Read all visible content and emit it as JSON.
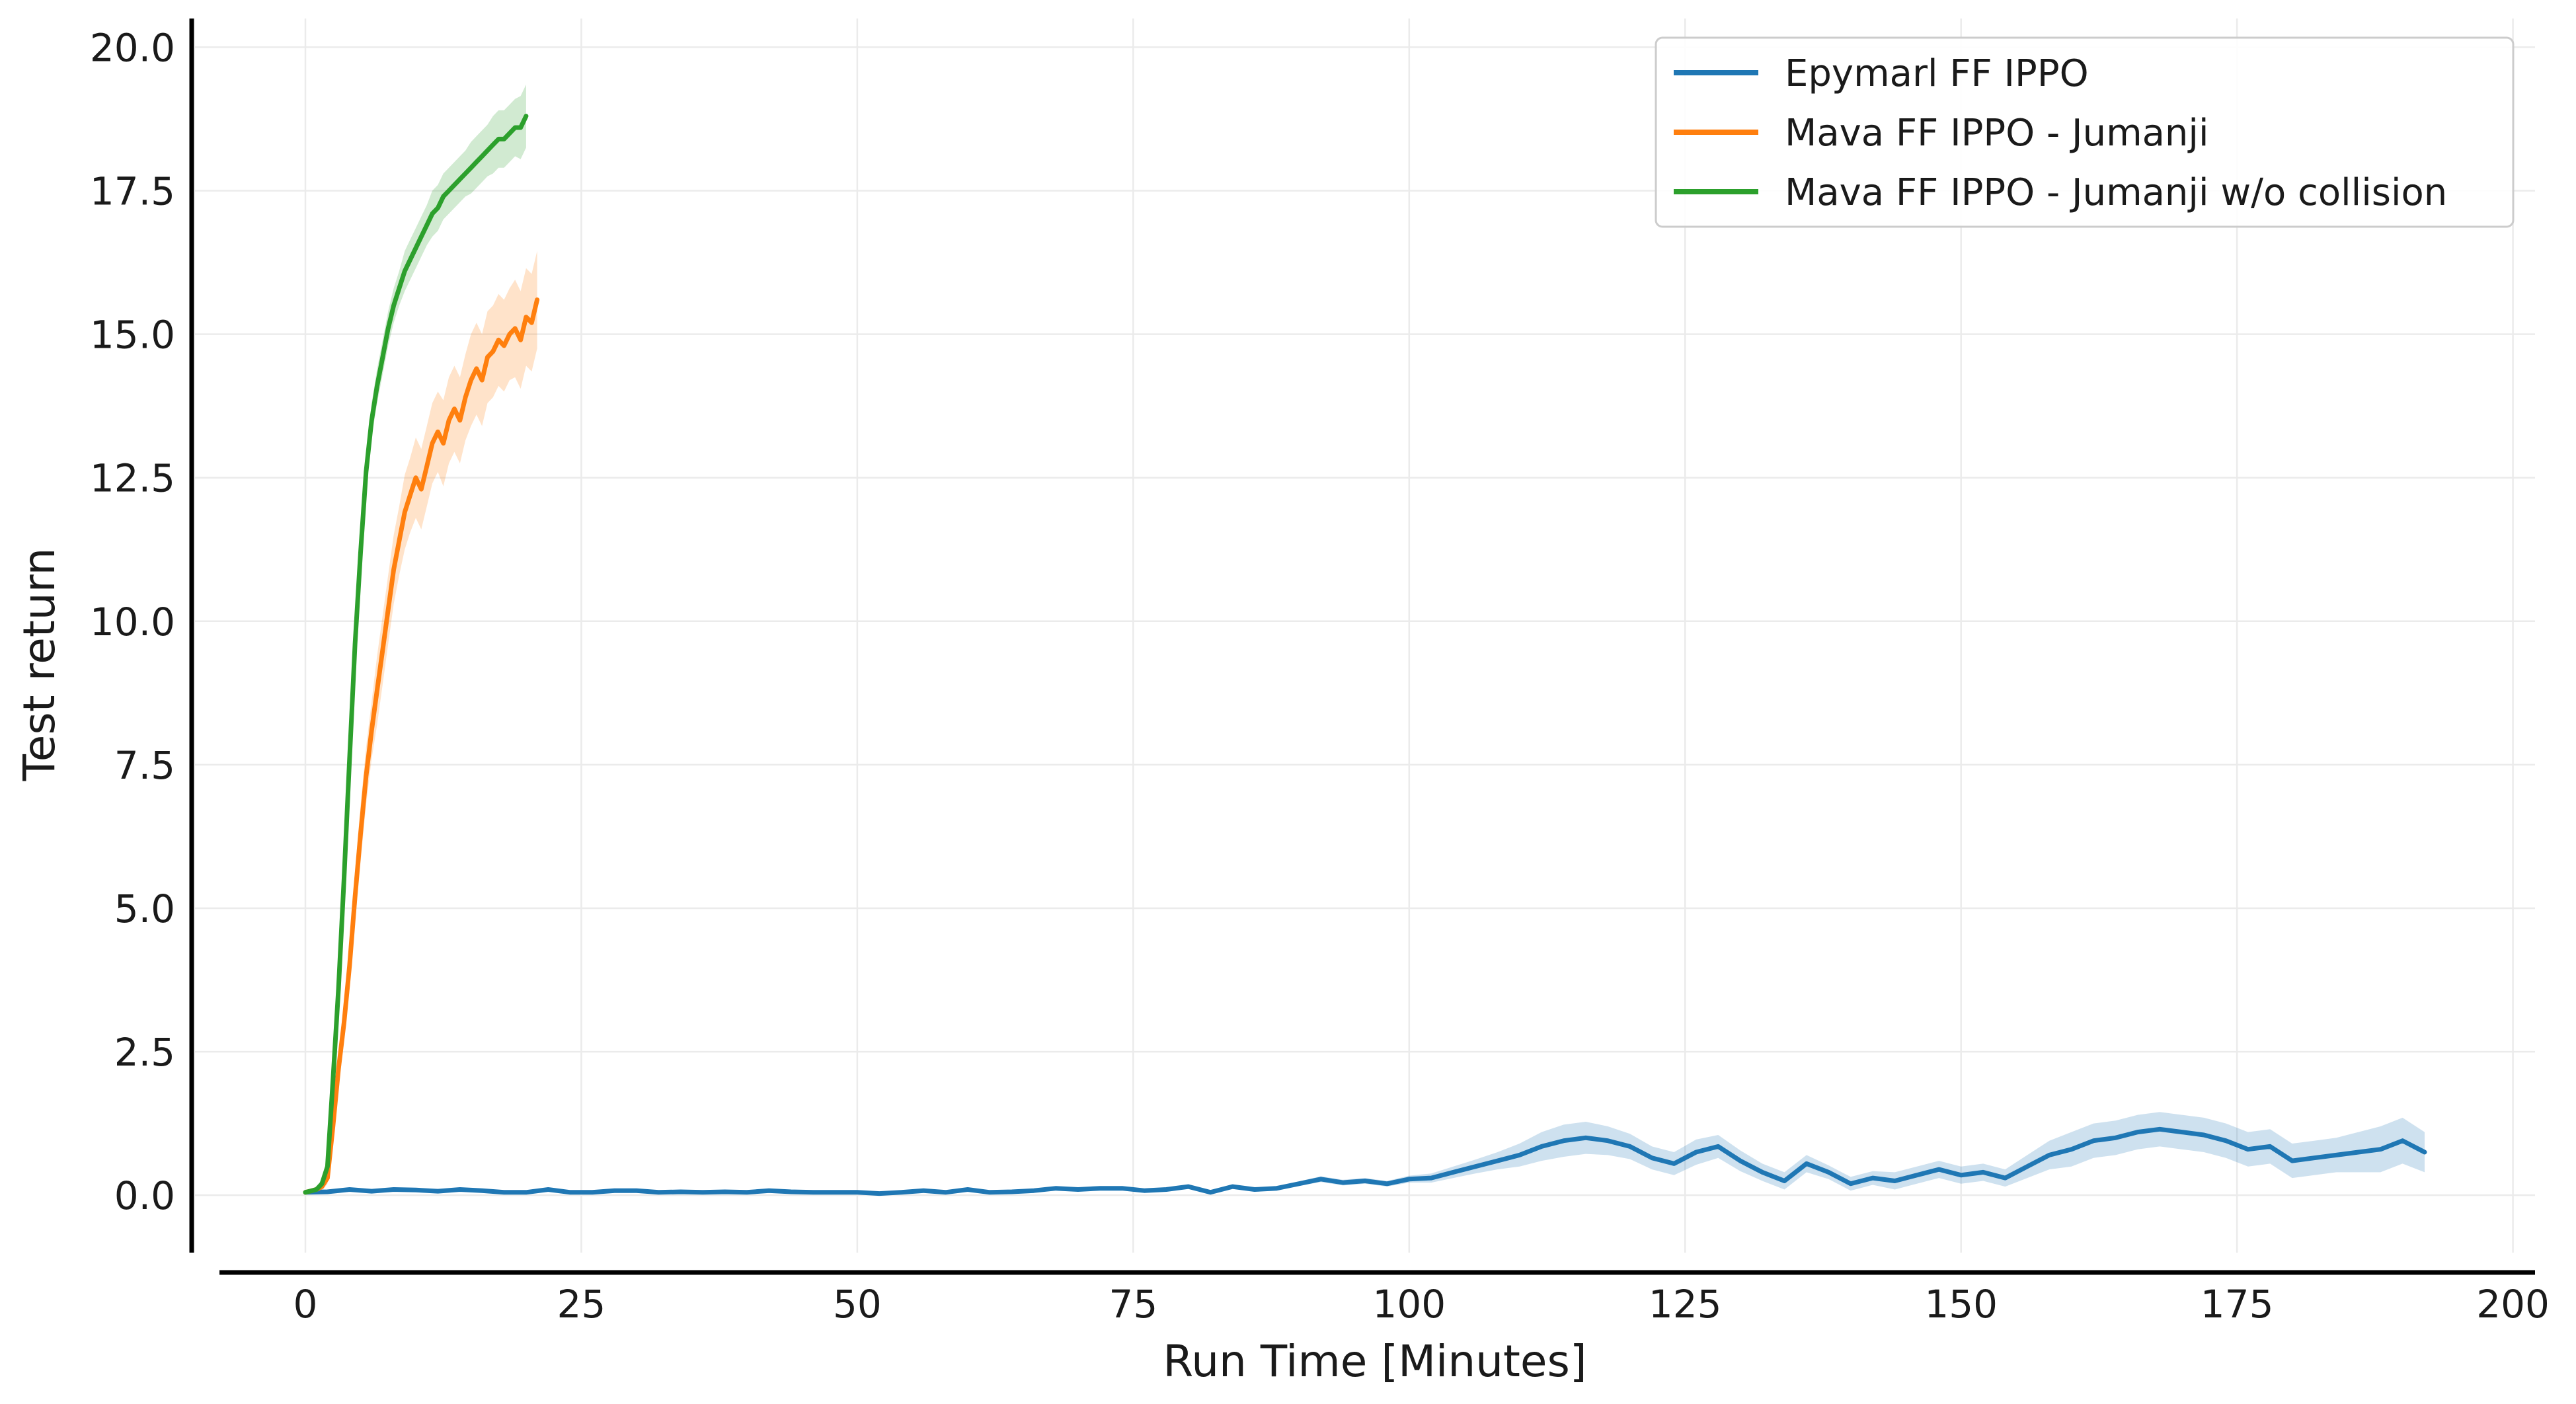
{
  "chart_data": {
    "type": "line",
    "xlabel": "Run Time [Minutes]",
    "ylabel": "Test return",
    "xlim": [
      -10,
      202
    ],
    "ylim": [
      -1.0,
      20.5
    ],
    "xticks": [
      0,
      25,
      50,
      75,
      100,
      125,
      150,
      175,
      200
    ],
    "yticks": [
      0.0,
      2.5,
      5.0,
      7.5,
      10.0,
      12.5,
      15.0,
      17.5,
      20.0
    ],
    "xtick_labels": [
      "0",
      "25",
      "50",
      "75",
      "100",
      "125",
      "150",
      "175",
      "200"
    ],
    "ytick_labels": [
      "0.0",
      "2.5",
      "5.0",
      "7.5",
      "10.0",
      "12.5",
      "15.0",
      "17.5",
      "20.0"
    ],
    "grid": true,
    "legend_position": "top-right",
    "series": [
      {
        "name": "Epymarl FF IPPO",
        "color": "#1f77b4",
        "band": "ci",
        "x": [
          0,
          2,
          4,
          6,
          8,
          10,
          12,
          14,
          16,
          18,
          20,
          22,
          24,
          26,
          28,
          30,
          32,
          34,
          36,
          38,
          40,
          42,
          44,
          46,
          48,
          50,
          52,
          54,
          56,
          58,
          60,
          62,
          64,
          66,
          68,
          70,
          72,
          74,
          76,
          78,
          80,
          82,
          84,
          86,
          88,
          90,
          92,
          94,
          96,
          98,
          100,
          102,
          104,
          106,
          108,
          110,
          112,
          114,
          116,
          118,
          120,
          122,
          124,
          126,
          128,
          130,
          132,
          134,
          136,
          138,
          140,
          142,
          144,
          146,
          148,
          150,
          152,
          154,
          156,
          158,
          160,
          162,
          164,
          166,
          168,
          170,
          172,
          174,
          176,
          178,
          180,
          182,
          184,
          186,
          188,
          190,
          192
        ],
        "y": [
          0.05,
          0.06,
          0.1,
          0.07,
          0.1,
          0.09,
          0.07,
          0.1,
          0.08,
          0.05,
          0.05,
          0.1,
          0.05,
          0.05,
          0.08,
          0.08,
          0.05,
          0.06,
          0.05,
          0.06,
          0.05,
          0.08,
          0.06,
          0.05,
          0.05,
          0.05,
          0.03,
          0.05,
          0.08,
          0.05,
          0.1,
          0.05,
          0.06,
          0.08,
          0.12,
          0.1,
          0.12,
          0.12,
          0.08,
          0.1,
          0.15,
          0.05,
          0.15,
          0.1,
          0.12,
          0.2,
          0.28,
          0.22,
          0.25,
          0.2,
          0.28,
          0.3,
          0.4,
          0.5,
          0.6,
          0.7,
          0.85,
          0.95,
          1.0,
          0.95,
          0.85,
          0.65,
          0.55,
          0.75,
          0.85,
          0.6,
          0.4,
          0.25,
          0.55,
          0.4,
          0.2,
          0.3,
          0.25,
          0.35,
          0.45,
          0.35,
          0.4,
          0.3,
          0.5,
          0.7,
          0.8,
          0.95,
          1.0,
          1.1,
          1.15,
          1.1,
          1.05,
          0.95,
          0.8,
          0.85,
          0.6,
          0.65,
          0.7,
          0.75,
          0.8,
          0.95,
          0.75
        ],
        "band_halfwidth": [
          0.02,
          0.02,
          0.02,
          0.02,
          0.02,
          0.02,
          0.02,
          0.02,
          0.02,
          0.02,
          0.02,
          0.02,
          0.02,
          0.02,
          0.02,
          0.02,
          0.02,
          0.02,
          0.02,
          0.02,
          0.02,
          0.02,
          0.02,
          0.02,
          0.02,
          0.02,
          0.02,
          0.02,
          0.02,
          0.02,
          0.02,
          0.02,
          0.02,
          0.02,
          0.02,
          0.02,
          0.02,
          0.02,
          0.02,
          0.02,
          0.03,
          0.03,
          0.03,
          0.03,
          0.03,
          0.04,
          0.05,
          0.05,
          0.05,
          0.05,
          0.06,
          0.08,
          0.1,
          0.12,
          0.15,
          0.2,
          0.25,
          0.28,
          0.28,
          0.25,
          0.22,
          0.2,
          0.2,
          0.22,
          0.2,
          0.18,
          0.15,
          0.15,
          0.15,
          0.12,
          0.12,
          0.12,
          0.15,
          0.15,
          0.15,
          0.15,
          0.15,
          0.15,
          0.2,
          0.25,
          0.3,
          0.3,
          0.3,
          0.3,
          0.3,
          0.3,
          0.3,
          0.3,
          0.3,
          0.3,
          0.3,
          0.3,
          0.3,
          0.35,
          0.4,
          0.4,
          0.35
        ]
      },
      {
        "name": "Mava FF IPPO - Jumanji",
        "color": "#ff7f0e",
        "band": "ci",
        "x": [
          0,
          1,
          1.5,
          2,
          2.5,
          3,
          3.5,
          4,
          4.5,
          5,
          5.5,
          6,
          6.5,
          7,
          7.5,
          8,
          8.5,
          9,
          9.5,
          10,
          10.5,
          11,
          11.5,
          12,
          12.5,
          13,
          13.5,
          14,
          14.5,
          15,
          15.5,
          16,
          16.5,
          17,
          17.5,
          18,
          18.5,
          19,
          19.5,
          20,
          20.5,
          21
        ],
        "y": [
          0.05,
          0.1,
          0.15,
          0.3,
          1.2,
          2.2,
          3.0,
          4.0,
          5.2,
          6.3,
          7.3,
          8.1,
          8.8,
          9.5,
          10.2,
          10.9,
          11.4,
          11.9,
          12.2,
          12.5,
          12.3,
          12.7,
          13.1,
          13.3,
          13.1,
          13.5,
          13.7,
          13.5,
          13.9,
          14.2,
          14.4,
          14.2,
          14.6,
          14.7,
          14.9,
          14.8,
          15.0,
          15.1,
          14.9,
          15.3,
          15.2,
          15.6
        ],
        "band_halfwidth": [
          0.02,
          0.05,
          0.08,
          0.1,
          0.2,
          0.3,
          0.35,
          0.4,
          0.45,
          0.5,
          0.5,
          0.5,
          0.6,
          0.6,
          0.6,
          0.6,
          0.6,
          0.65,
          0.65,
          0.7,
          0.7,
          0.7,
          0.7,
          0.7,
          0.75,
          0.75,
          0.75,
          0.75,
          0.75,
          0.8,
          0.8,
          0.8,
          0.8,
          0.8,
          0.8,
          0.8,
          0.8,
          0.85,
          0.85,
          0.85,
          0.85,
          0.85
        ]
      },
      {
        "name": "Mava FF IPPO - Jumanji w/o collision",
        "color": "#2ca02c",
        "band": "ci",
        "x": [
          0,
          1,
          1.5,
          2,
          2.5,
          3,
          3.5,
          4,
          4.5,
          5,
          5.5,
          6,
          6.5,
          7,
          7.5,
          8,
          8.5,
          9,
          9.5,
          10,
          10.5,
          11,
          11.5,
          12,
          12.5,
          13,
          13.5,
          14,
          14.5,
          15,
          15.5,
          16,
          16.5,
          17,
          17.5,
          18,
          18.5,
          19,
          19.5,
          20
        ],
        "y": [
          0.05,
          0.1,
          0.2,
          0.5,
          2.0,
          3.6,
          5.5,
          7.6,
          9.6,
          11.2,
          12.6,
          13.5,
          14.1,
          14.6,
          15.1,
          15.5,
          15.8,
          16.1,
          16.3,
          16.5,
          16.7,
          16.9,
          17.1,
          17.2,
          17.4,
          17.5,
          17.6,
          17.7,
          17.8,
          17.9,
          18.0,
          18.1,
          18.2,
          18.3,
          18.4,
          18.4,
          18.5,
          18.6,
          18.6,
          18.8
        ],
        "band_halfwidth": [
          0.02,
          0.05,
          0.08,
          0.1,
          0.15,
          0.2,
          0.25,
          0.3,
          0.3,
          0.3,
          0.3,
          0.3,
          0.3,
          0.3,
          0.3,
          0.3,
          0.3,
          0.35,
          0.35,
          0.35,
          0.35,
          0.35,
          0.4,
          0.4,
          0.4,
          0.4,
          0.4,
          0.4,
          0.4,
          0.45,
          0.45,
          0.45,
          0.45,
          0.5,
          0.5,
          0.5,
          0.5,
          0.5,
          0.55,
          0.55
        ]
      }
    ]
  }
}
